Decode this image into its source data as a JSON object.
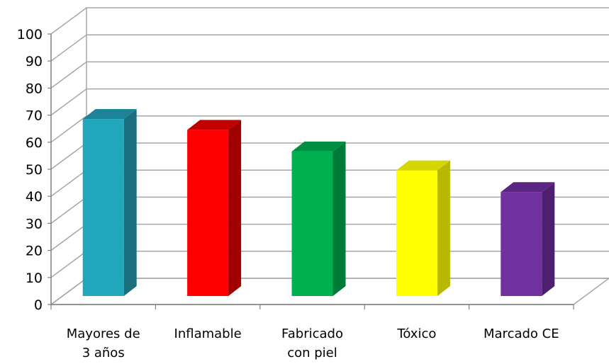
{
  "chart_data": {
    "type": "bar",
    "title": "",
    "xlabel": "",
    "ylabel": "",
    "ylim": [
      0,
      100
    ],
    "y_ticks": [
      0,
      10,
      20,
      30,
      40,
      50,
      60,
      70,
      80,
      90,
      100
    ],
    "grid": true,
    "style": "3d-column",
    "categories": [
      [
        "Mayores de",
        "3 años"
      ],
      [
        "Inflamable"
      ],
      [
        "Fabricado",
        "con piel"
      ],
      [
        "Tóxico"
      ],
      [
        "Marcado CE"
      ]
    ],
    "values": [
      67,
      63,
      55,
      48,
      40
    ],
    "colors": [
      {
        "front": "#21a7bc",
        "side": "#1a6f7f",
        "top": "#1d8396"
      },
      {
        "front": "#ff0000",
        "side": "#a00000",
        "top": "#c20000"
      },
      {
        "front": "#00b050",
        "side": "#007a38",
        "top": "#008e42"
      },
      {
        "front": "#ffff00",
        "side": "#b8b800",
        "top": "#d6d600"
      },
      {
        "front": "#7030a0",
        "side": "#4e1f70",
        "top": "#5c2584"
      }
    ]
  }
}
